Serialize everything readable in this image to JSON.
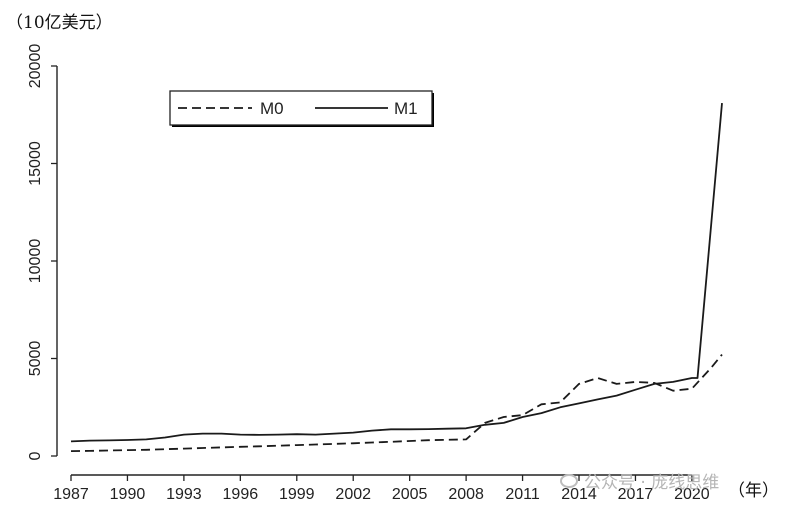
{
  "chart_data": {
    "type": "line",
    "unit_label": "（10亿美元）",
    "x_unit_label": "（年）",
    "x_ticks": [
      "1987",
      "1990",
      "1993",
      "1996",
      "1999",
      "2002",
      "2005",
      "2008",
      "2011",
      "2014",
      "2017",
      "2020"
    ],
    "y_ticks": [
      "0",
      "5000",
      "10000",
      "15000",
      "20000"
    ],
    "xlim": [
      1987,
      2021.6
    ],
    "ylim": [
      0,
      20000
    ],
    "grid": false,
    "legend_position": "top-left",
    "series": [
      {
        "name": "M0",
        "dash": "dashed",
        "color": "#1a1a1a",
        "x": [
          1987,
          1988,
          1989,
          1990,
          1991,
          1992,
          1993,
          1994,
          1995,
          1996,
          1997,
          1998,
          1999,
          2000,
          2001,
          2002,
          2003,
          2004,
          2005,
          2006,
          2007,
          2008,
          2009,
          2010,
          2011,
          2012,
          2013,
          2014,
          2015,
          2016,
          2017,
          2018,
          2019,
          2020,
          2021,
          2021.6
        ],
        "y": [
          250,
          260,
          280,
          300,
          320,
          350,
          380,
          410,
          440,
          470,
          500,
          530,
          560,
          590,
          620,
          650,
          690,
          730,
          770,
          810,
          830,
          850,
          1700,
          2000,
          2100,
          2650,
          2750,
          3700,
          4000,
          3700,
          3800,
          3750,
          3350,
          3450,
          4500,
          5200
        ]
      },
      {
        "name": "M1",
        "dash": "solid",
        "color": "#1a1a1a",
        "x": [
          1987,
          1988,
          1989,
          1990,
          1991,
          1992,
          1993,
          1994,
          1995,
          1996,
          1997,
          1998,
          1999,
          2000,
          2001,
          2002,
          2003,
          2004,
          2005,
          2006,
          2007,
          2008,
          2009,
          2010,
          2011,
          2012,
          2013,
          2014,
          2015,
          2016,
          2017,
          2018,
          2019,
          2020,
          2020.3,
          2021.6
        ],
        "y": [
          750,
          790,
          800,
          820,
          850,
          950,
          1100,
          1150,
          1150,
          1100,
          1080,
          1100,
          1120,
          1100,
          1150,
          1200,
          1300,
          1370,
          1370,
          1380,
          1400,
          1420,
          1600,
          1700,
          2000,
          2200,
          2500,
          2700,
          2900,
          3100,
          3400,
          3700,
          3800,
          4000,
          4000,
          18100
        ]
      }
    ]
  },
  "watermark": {
    "text": "公众号 · 庞线思维"
  }
}
